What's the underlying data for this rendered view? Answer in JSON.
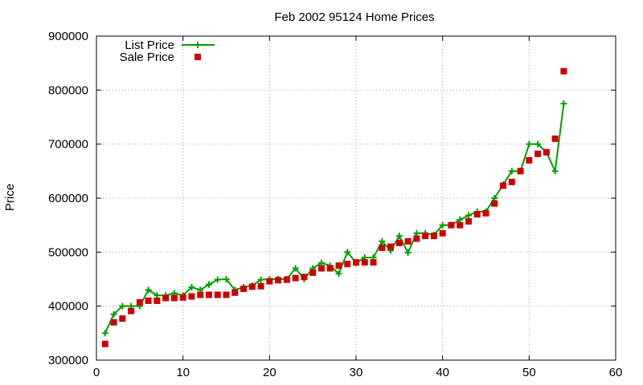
{
  "chart_data": {
    "type": "line",
    "title": "Feb 2002 95124 Home Prices",
    "xlabel": "",
    "ylabel": "Price",
    "xlim": [
      0,
      60
    ],
    "ylim": [
      300000,
      900000
    ],
    "x_ticks": [
      0,
      10,
      20,
      30,
      40,
      50,
      60
    ],
    "y_ticks": [
      300000,
      400000,
      500000,
      600000,
      700000,
      800000,
      900000
    ],
    "grid": true,
    "legend_position": "top-left",
    "x": [
      1,
      2,
      3,
      4,
      5,
      6,
      7,
      8,
      9,
      10,
      11,
      12,
      13,
      14,
      15,
      16,
      17,
      18,
      19,
      20,
      21,
      22,
      23,
      24,
      25,
      26,
      27,
      28,
      29,
      30,
      31,
      32,
      33,
      34,
      35,
      36,
      37,
      38,
      39,
      40,
      41,
      42,
      43,
      44,
      45,
      46,
      47,
      48,
      49,
      50,
      51,
      52,
      53,
      54
    ],
    "series": [
      {
        "name": "List Price",
        "style": "line-plus",
        "color": "#00a000",
        "values": [
          350000,
          385000,
          400000,
          400000,
          400000,
          430000,
          420000,
          420000,
          424000,
          420000,
          435000,
          430000,
          440000,
          449000,
          450000,
          430000,
          435000,
          438000,
          449000,
          450000,
          450000,
          450000,
          470000,
          450000,
          470000,
          480000,
          475000,
          460000,
          500000,
          480000,
          490000,
          490000,
          520000,
          503000,
          530000,
          499000,
          535000,
          535000,
          532000,
          550000,
          550000,
          560000,
          568000,
          575000,
          575000,
          600000,
          625000,
          650000,
          650000,
          700000,
          700000,
          685000,
          650000,
          775000
        ]
      },
      {
        "name": "Sale Price",
        "style": "square",
        "color": "#cc0000",
        "values": [
          330000,
          370000,
          377000,
          391000,
          407000,
          410000,
          410000,
          415000,
          415000,
          416000,
          418000,
          421000,
          421000,
          421000,
          421000,
          425000,
          432000,
          436000,
          437000,
          446000,
          448000,
          449000,
          452000,
          454000,
          462000,
          470000,
          470000,
          475000,
          478000,
          481000,
          481000,
          481000,
          508000,
          510000,
          517000,
          520000,
          525000,
          530000,
          530000,
          535000,
          550000,
          550000,
          557000,
          570000,
          572000,
          590000,
          623000,
          630000,
          650000,
          670000,
          682000,
          685000,
          710000,
          835000
        ]
      }
    ]
  },
  "colors": {
    "list_price": "#00a000",
    "sale_price": "#cc0000",
    "grid": "#a0a0a0",
    "axis": "#000000"
  }
}
